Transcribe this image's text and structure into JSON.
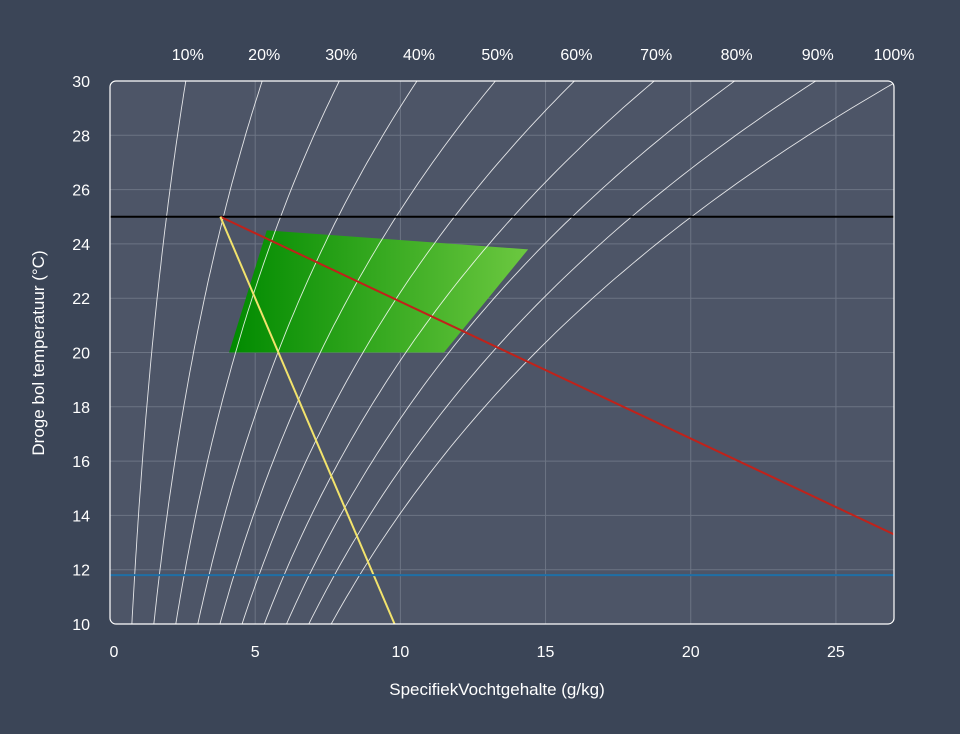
{
  "chart_data": {
    "type": "line",
    "title": "",
    "xlabel": "SpecifiekVochtgehalte (g/kg)",
    "ylabel": "Droge bol temperatuur  (°C)",
    "xlim": [
      0,
      27
    ],
    "ylim": [
      10,
      30
    ],
    "x_ticks": [
      0,
      5,
      10,
      15,
      20,
      25
    ],
    "y_ticks": [
      10,
      12,
      14,
      16,
      18,
      20,
      22,
      24,
      26,
      28,
      30
    ],
    "grid": true,
    "colors": {
      "background": "#3b4557",
      "plot_area": "#4d5567",
      "grid": "#6c7484",
      "rh_curves": "#ffffff",
      "comfort_zone_dark": "#008a00",
      "comfort_zone_light": "#6cc840",
      "black_line": "#000000",
      "red_line": "#c0221a",
      "yellow_line": "#f2e36c",
      "blue_line": "#1f6fa6"
    },
    "rh_curves": [
      {
        "label": "10%",
        "rh": 0.1
      },
      {
        "label": "20%",
        "rh": 0.2
      },
      {
        "label": "30%",
        "rh": 0.3
      },
      {
        "label": "40%",
        "rh": 0.4
      },
      {
        "label": "50%",
        "rh": 0.5
      },
      {
        "label": "60%",
        "rh": 0.6
      },
      {
        "label": "70%",
        "rh": 0.7
      },
      {
        "label": "80%",
        "rh": 0.8
      },
      {
        "label": "90%",
        "rh": 0.9
      },
      {
        "label": "100%",
        "rh": 1.0
      }
    ],
    "series": [
      {
        "type": "polygon",
        "points": [
          [
            4.1,
            20
          ],
          [
            11.5,
            20
          ],
          [
            14.4,
            23.8
          ],
          [
            5.4,
            24.5
          ]
        ]
      },
      {
        "type": "line",
        "color_key": "black_line",
        "points": [
          [
            0,
            25
          ],
          [
            27,
            25
          ]
        ]
      },
      {
        "type": "line",
        "color_key": "red_line",
        "points": [
          [
            3.8,
            25
          ],
          [
            27,
            13.3
          ]
        ]
      },
      {
        "type": "line",
        "color_key": "yellow_line",
        "points": [
          [
            3.8,
            25
          ],
          [
            9.8,
            10
          ]
        ]
      },
      {
        "type": "line",
        "color_key": "blue_line",
        "points": [
          [
            0,
            11.8
          ],
          [
            27,
            11.8
          ]
        ]
      }
    ]
  }
}
